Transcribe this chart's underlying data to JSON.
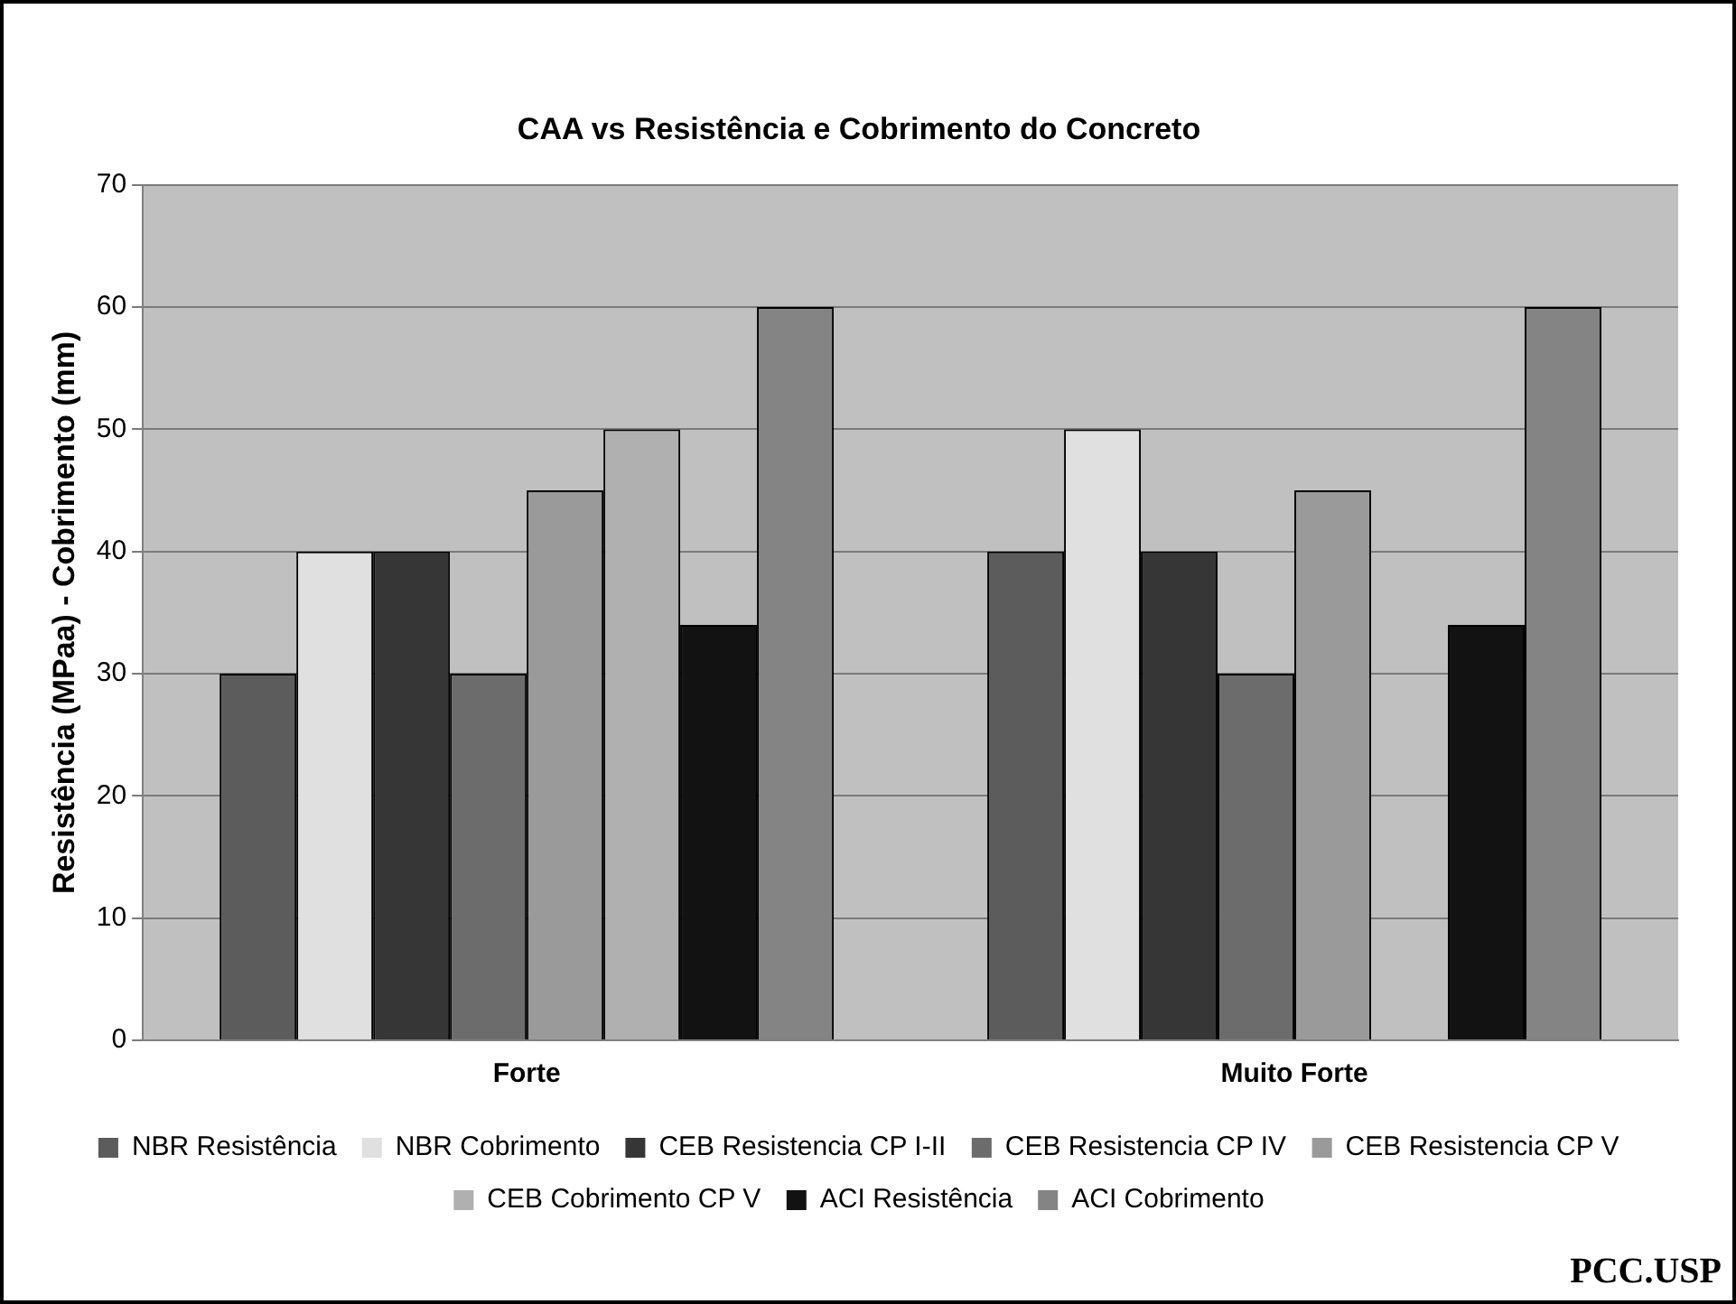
{
  "chart_data": {
    "type": "bar",
    "title": "CAA vs Resistência e Cobrimento do Concreto",
    "ylabel": "Resistência (MPaa) - Cobrimento (mm)",
    "categories": [
      "Forte",
      "Muito Forte"
    ],
    "series": [
      {
        "name": "NBR Resistência",
        "color": "#5c5c5c",
        "values": [
          30,
          40
        ]
      },
      {
        "name": "NBR Cobrimento",
        "color": "#e0e0e0",
        "values": [
          40,
          50
        ]
      },
      {
        "name": "CEB Resistencia CP I-II",
        "color": "#363636",
        "values": [
          40,
          40
        ]
      },
      {
        "name": "CEB Resistencia CP IV",
        "color": "#6c6c6c",
        "values": [
          30,
          30
        ]
      },
      {
        "name": "CEB Resistencia CP V",
        "color": "#9a9a9a",
        "values": [
          45,
          45
        ]
      },
      {
        "name": "CEB Cobrimento CP V",
        "color": "#b0b0b0",
        "values": [
          50,
          null
        ]
      },
      {
        "name": "ACI Resistência",
        "color": "#121212",
        "values": [
          34,
          34
        ]
      },
      {
        "name": "ACI Cobrimento",
        "color": "#848484",
        "values": [
          60,
          60
        ]
      }
    ],
    "ylim": [
      0,
      70
    ],
    "yticks": [
      0,
      10,
      20,
      30,
      40,
      50,
      60,
      70
    ],
    "grid": "y",
    "legend": "bottom",
    "annotations": [
      "PCC.USP"
    ]
  }
}
